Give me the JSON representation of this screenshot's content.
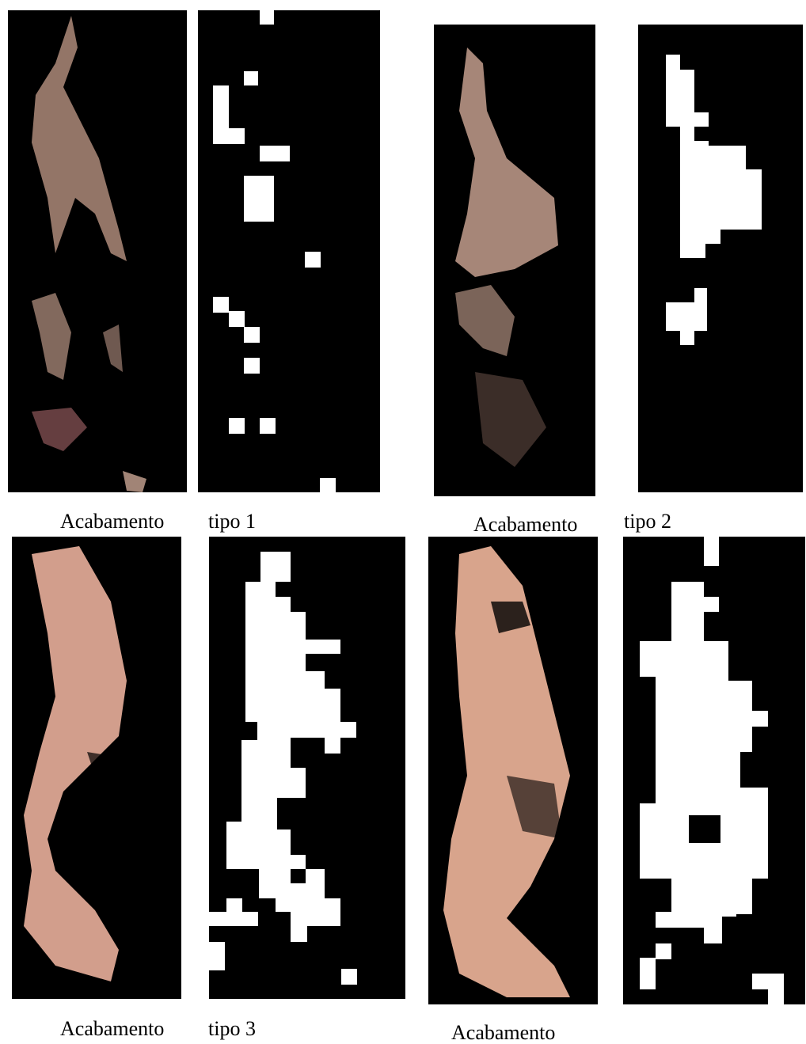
{
  "captions": [
    "Acabamento",
    "tipo 1",
    "Acabamento",
    "tipo 2",
    "Acabamento",
    "tipo 3",
    "Acabamento"
  ]
}
